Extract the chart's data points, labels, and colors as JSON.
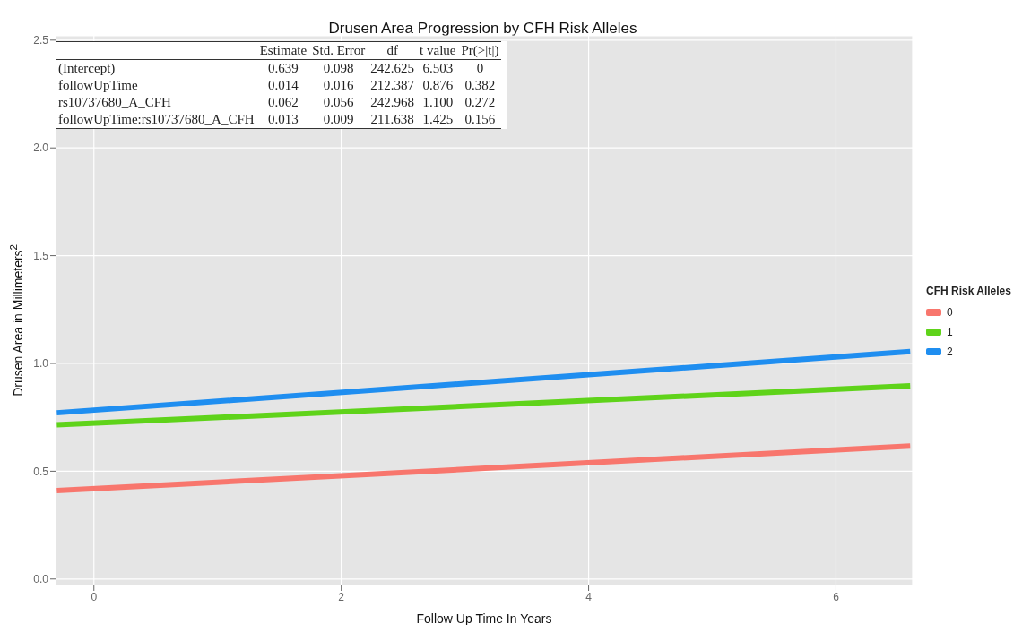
{
  "chart_data": {
    "type": "line",
    "title": "Drusen Area Progression by CFH Risk Alleles",
    "xlabel": "Follow Up Time In Years",
    "ylabel": "Drusen Area in Millimeters$^{2}$",
    "legend_title": "CFH Risk Alleles",
    "series": [
      {
        "name": "0",
        "color": "#f8766d",
        "values": [
          0.41,
          0.617
        ]
      },
      {
        "name": "1",
        "color": "#5fd31a",
        "values": [
          0.715,
          0.896
        ]
      },
      {
        "name": "2",
        "color": "#1f8ef0",
        "values": [
          0.771,
          1.055
        ]
      }
    ],
    "x": [
      -0.3,
      6.6
    ],
    "xlim": [
      -0.31,
      6.62
    ],
    "xticks": [
      0,
      2,
      4,
      6
    ],
    "ylim": [
      -0.03,
      2.52
    ],
    "yticks": [
      {
        "value": 0,
        "label": "0.0"
      },
      {
        "value": 0.5,
        "label": "0.5"
      },
      {
        "value": 1,
        "label": "1.0"
      },
      {
        "value": 1.5,
        "label": "1.5"
      },
      {
        "value": 2,
        "label": "2.0"
      },
      {
        "value": 2.5,
        "label": "2.5"
      }
    ],
    "grid": true,
    "legend": "right",
    "marker": "none",
    "line_style": "solid",
    "annotations": [
      "Estimate",
      "Std. Error",
      "df",
      "t value",
      "Pr(>|t|)",
      "(Intercept)",
      "0.639",
      "0.098",
      "242.625",
      "6.503",
      "0",
      "followUpTime",
      "0.014",
      "0.016",
      "212.387",
      "0.876",
      "0.382",
      "rs10737680_A_CFH",
      "0.062",
      "0.056",
      "242.968",
      "1.100",
      "0.272",
      "followUpTime:rs10737680_A_CFH",
      "0.013",
      "0.009",
      "211.638",
      "1.425",
      "0.156"
    ]
  }
}
